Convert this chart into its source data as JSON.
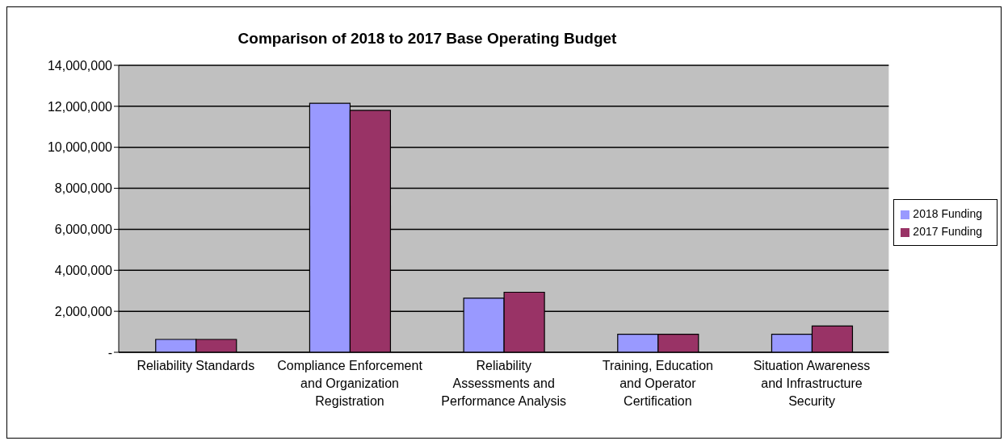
{
  "chart_data": {
    "type": "bar",
    "title": "Comparison of 2018 to 2017 Base Operating Budget",
    "categories": [
      "Reliability Standards",
      "Compliance Enforcement and Organization Registration",
      "Reliability Assessments and Performance Analysis",
      "Training, Education and Operator Certification",
      "Situation Awareness and Infrastructure Security"
    ],
    "series": [
      {
        "name": "2018 Funding",
        "color": "#9999ff",
        "values": [
          630000,
          12150000,
          2640000,
          880000,
          880000
        ]
      },
      {
        "name": "2017 Funding",
        "color": "#993366",
        "values": [
          630000,
          11800000,
          2930000,
          880000,
          1280000
        ]
      }
    ],
    "ylim": [
      0,
      14000000
    ],
    "yticks": [
      {
        "value": 0,
        "label": "-"
      },
      {
        "value": 2000000,
        "label": "2,000,000"
      },
      {
        "value": 4000000,
        "label": "4,000,000"
      },
      {
        "value": 6000000,
        "label": "6,000,000"
      },
      {
        "value": 8000000,
        "label": "8,000,000"
      },
      {
        "value": 10000000,
        "label": "10,000,000"
      },
      {
        "value": 12000000,
        "label": "12,000,000"
      },
      {
        "value": 14000000,
        "label": "14,000,000"
      }
    ],
    "grid": "y",
    "legend": "right"
  }
}
